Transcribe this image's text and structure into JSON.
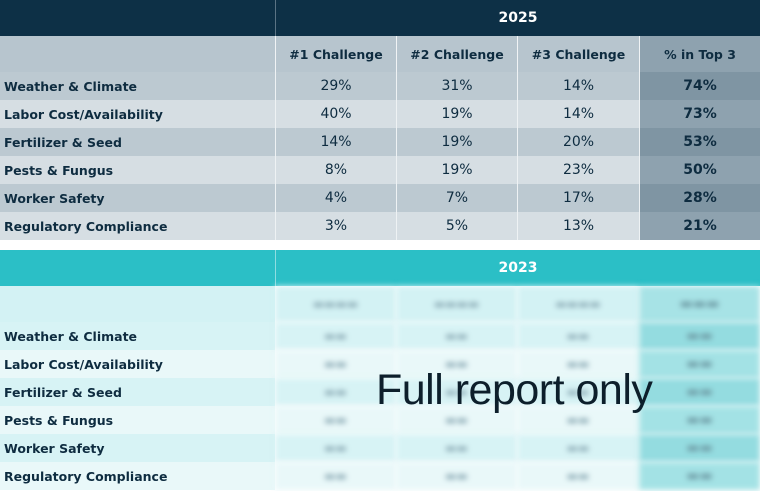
{
  "table_2025": {
    "year": "2025",
    "headers": [
      "#1 Challenge",
      "#2 Challenge",
      "#3 Challenge",
      "% in Top 3"
    ],
    "rows": [
      {
        "label": "Weather & Climate",
        "values": [
          "29%",
          "31%",
          "14%",
          "74%"
        ]
      },
      {
        "label": "Labor Cost/Availability",
        "values": [
          "40%",
          "19%",
          "14%",
          "73%"
        ]
      },
      {
        "label": "Fertilizer & Seed",
        "values": [
          "14%",
          "19%",
          "20%",
          "53%"
        ]
      },
      {
        "label": "Pests & Fungus",
        "values": [
          "8%",
          "19%",
          "23%",
          "50%"
        ]
      },
      {
        "label": "Worker Safety",
        "values": [
          "4%",
          "7%",
          "17%",
          "28%"
        ]
      },
      {
        "label": "Regulatory Compliance",
        "values": [
          "3%",
          "5%",
          "13%",
          "21%"
        ]
      }
    ]
  },
  "table_2023": {
    "year": "2023",
    "rows": [
      {
        "label": "Weather & Climate"
      },
      {
        "label": "Labor Cost/Availability"
      },
      {
        "label": "Fertilizer & Seed"
      },
      {
        "label": "Pests & Fungus"
      },
      {
        "label": "Worker Safety"
      },
      {
        "label": "Regulatory Compliance"
      }
    ]
  },
  "overlay_text": "Full report only",
  "colors": {
    "navy": "#0d3046",
    "teal": "#2bbfc6"
  }
}
